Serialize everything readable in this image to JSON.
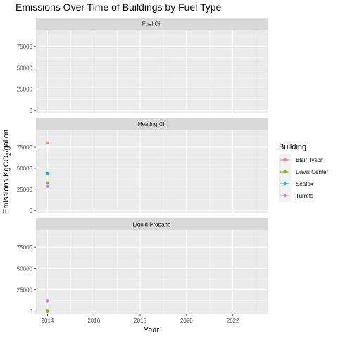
{
  "chart_data": {
    "type": "scatter",
    "title": "Emissions Over Time of Buildings by Fuel Type",
    "xlabel": "Year",
    "ylabel": "Emissions KgCO2/gallon",
    "xlim": [
      2013.5,
      2023.5
    ],
    "ylim": [
      -3500,
      95000
    ],
    "x_ticks": [
      2014,
      2016,
      2018,
      2020,
      2022
    ],
    "y_ticks": [
      0,
      25000,
      50000,
      75000
    ],
    "y_tick_labels": [
      "0",
      "25000",
      "50000",
      "75000"
    ],
    "grid": true,
    "legend": {
      "title": "Building",
      "position": "right"
    },
    "series": [
      {
        "name": "Blair Tyson",
        "color": "#F8766D"
      },
      {
        "name": "Davis Center",
        "color": "#7CAE00"
      },
      {
        "name": "Seafox",
        "color": "#00BFC4"
      },
      {
        "name": "Turrets",
        "color": "#C77CFF"
      }
    ],
    "facets": [
      {
        "label": "Fuel Oil",
        "points": []
      },
      {
        "label": "Heating Oil",
        "points": [
          {
            "series": "Blair Tyson",
            "x": 2014,
            "y": 80000
          },
          {
            "series": "Seafox",
            "x": 2014,
            "y": 44000
          },
          {
            "series": "Davis Center",
            "x": 2014,
            "y": 32500
          },
          {
            "series": "Turrets",
            "x": 2014,
            "y": 28500
          }
        ]
      },
      {
        "label": "Liquid Propane",
        "points": [
          {
            "series": "Turrets",
            "x": 2014,
            "y": 12000
          },
          {
            "series": "Davis Center",
            "x": 2014,
            "y": 200
          }
        ]
      }
    ]
  }
}
